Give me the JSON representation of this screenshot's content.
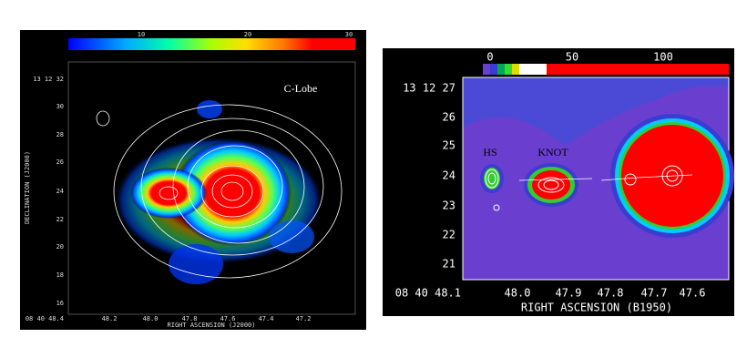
{
  "left_panel": {
    "colorbar_labels": [
      "10",
      "20",
      "30"
    ],
    "dec_labels": [
      "13 12 32",
      "30",
      "28",
      "26",
      "24",
      "22",
      "20",
      "18",
      "16"
    ],
    "ra_labels": [
      "08 40 48.4",
      "48.2",
      "48.0",
      "47.8",
      "47.6",
      "47.4",
      "47.2"
    ],
    "x_axis_title": "RIGHT ASCENSION (J2000)",
    "y_axis_title": "DECLINATION (J2000)",
    "annotation": "C-Lobe"
  },
  "right_panel": {
    "colorbar_labels": [
      "0",
      "50",
      "100"
    ],
    "dec_labels": [
      "13 12 27",
      "26",
      "25",
      "24",
      "23",
      "22",
      "21"
    ],
    "ra_labels": [
      "08 40 48.1",
      "48.0",
      "47.9",
      "47.8",
      "47.7",
      "47.6"
    ],
    "x_axis_title": "RIGHT ASCENSION (B1950)",
    "annotations": [
      "HS",
      "KNOT"
    ]
  }
}
